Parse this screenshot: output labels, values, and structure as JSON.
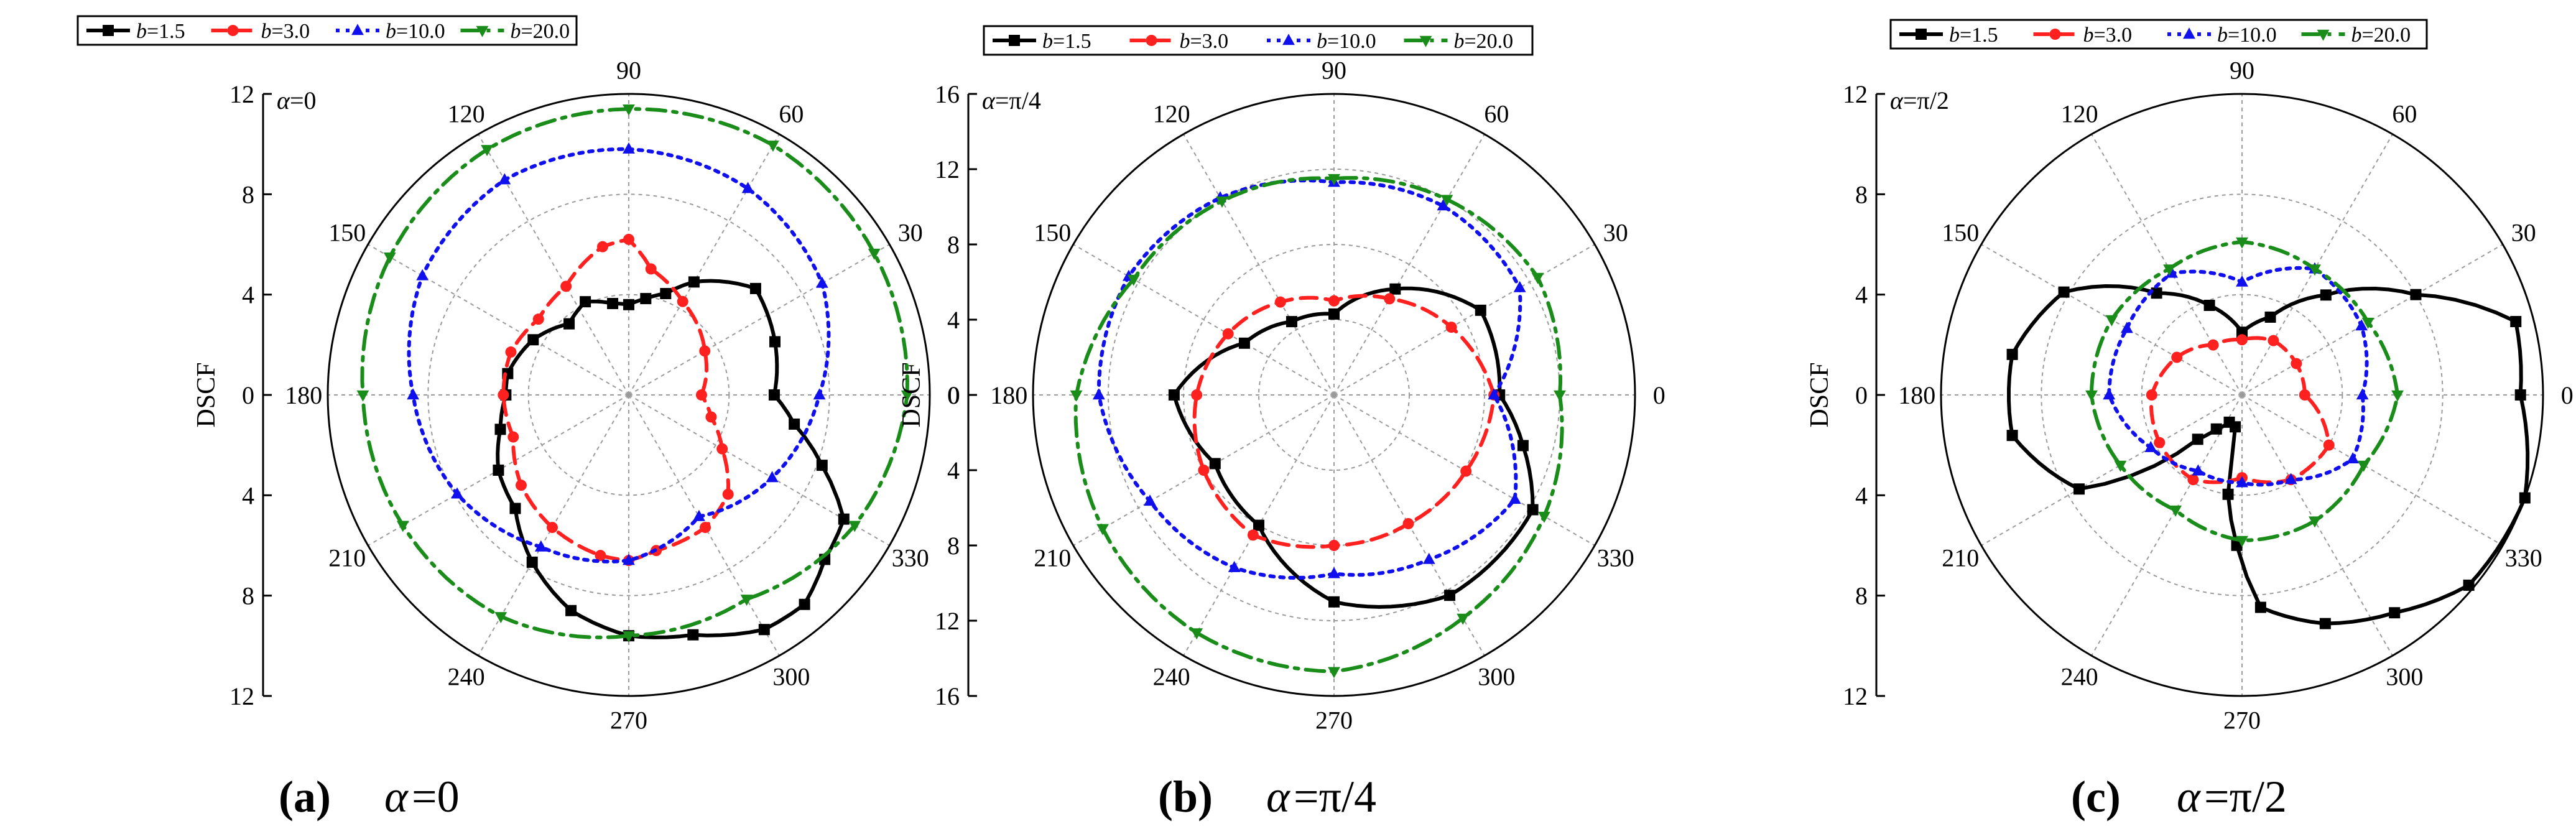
{
  "figure": {
    "panels": [
      {
        "letter": "(a)",
        "caption_symbol": "α",
        "caption_value": "=0"
      },
      {
        "letter": "(b)",
        "caption_symbol": "α",
        "caption_value": "=π/4"
      },
      {
        "letter": "(c)",
        "caption_symbol": "α",
        "caption_value": "=π/2"
      }
    ]
  },
  "legend": {
    "var": "b",
    "entries": [
      "=1.5",
      "=3.0",
      "=10.0",
      "=20.0"
    ]
  },
  "chart_data": [
    {
      "type": "polar-line",
      "panel": "a",
      "corner_label": "α=0",
      "ylabel": "DSCF",
      "rmax": 12,
      "r_ticks": [
        0,
        4,
        8,
        12
      ],
      "radial_tick_labels": [
        "12",
        "8",
        "4",
        "0",
        "4",
        "8",
        "12"
      ],
      "angle_labels": [
        "0",
        "30",
        "60",
        "90",
        "120",
        "150",
        "180",
        "210",
        "240",
        "270",
        "300",
        "330"
      ],
      "series": [
        {
          "name": "b=1.5",
          "color": "#000000",
          "dash": "solid",
          "marker": "square",
          "points": [
            [
              0,
              5.8
            ],
            [
              20,
              6.2
            ],
            [
              40,
              6.6
            ],
            [
              60,
              5.2
            ],
            [
              70,
              4.3
            ],
            [
              80,
              3.9
            ],
            [
              90,
              3.6
            ],
            [
              100,
              3.7
            ],
            [
              115,
              4.1
            ],
            [
              130,
              3.7
            ],
            [
              150,
              4.4
            ],
            [
              170,
              4.9
            ],
            [
              180,
              4.9
            ],
            [
              195,
              5.3
            ],
            [
              210,
              6.0
            ],
            [
              225,
              6.4
            ],
            [
              240,
              7.7
            ],
            [
              255,
              8.9
            ],
            [
              270,
              9.6
            ],
            [
              285,
              9.9
            ],
            [
              300,
              10.8
            ],
            [
              310,
              10.9
            ],
            [
              320,
              10.2
            ],
            [
              330,
              9.9
            ],
            [
              340,
              8.2
            ],
            [
              350,
              6.7
            ],
            [
              360,
              5.8
            ]
          ]
        },
        {
          "name": "b=3.0",
          "color": "#ff2020",
          "dash": "dash",
          "marker": "circle",
          "points": [
            [
              0,
              2.9
            ],
            [
              30,
              3.5
            ],
            [
              60,
              4.3
            ],
            [
              80,
              5.1
            ],
            [
              90,
              6.2
            ],
            [
              100,
              6.0
            ],
            [
              120,
              5.0
            ],
            [
              140,
              4.7
            ],
            [
              160,
              5.0
            ],
            [
              180,
              5.0
            ],
            [
              200,
              4.9
            ],
            [
              220,
              5.6
            ],
            [
              240,
              6.1
            ],
            [
              260,
              6.5
            ],
            [
              270,
              6.6
            ],
            [
              280,
              6.3
            ],
            [
              300,
              6.1
            ],
            [
              315,
              5.6
            ],
            [
              330,
              4.3
            ],
            [
              345,
              3.4
            ],
            [
              360,
              2.9
            ]
          ]
        },
        {
          "name": "b=10.0",
          "color": "#1010ee",
          "dash": "dot",
          "marker": "triangle-up",
          "points": [
            [
              0,
              7.6
            ],
            [
              30,
              8.9
            ],
            [
              60,
              9.5
            ],
            [
              90,
              9.8
            ],
            [
              120,
              9.9
            ],
            [
              150,
              9.5
            ],
            [
              180,
              8.6
            ],
            [
              210,
              7.9
            ],
            [
              240,
              7.0
            ],
            [
              270,
              6.6
            ],
            [
              300,
              5.6
            ],
            [
              330,
              6.6
            ],
            [
              360,
              7.6
            ]
          ]
        },
        {
          "name": "b=20.0",
          "color": "#1a8c1a",
          "dash": "dashdot",
          "marker": "triangle-down",
          "points": [
            [
              0,
              11.1
            ],
            [
              30,
              11.3
            ],
            [
              60,
              11.5
            ],
            [
              90,
              11.4
            ],
            [
              120,
              11.3
            ],
            [
              150,
              11.0
            ],
            [
              180,
              10.6
            ],
            [
              210,
              10.4
            ],
            [
              240,
              10.2
            ],
            [
              270,
              9.6
            ],
            [
              300,
              9.4
            ],
            [
              330,
              10.4
            ],
            [
              360,
              11.1
            ]
          ]
        }
      ]
    },
    {
      "type": "polar-line",
      "panel": "b",
      "corner_label": "α=π/4",
      "ylabel": "DSCF",
      "rmax": 16,
      "r_ticks": [
        0,
        4,
        8,
        12,
        16
      ],
      "radial_tick_labels": [
        "16",
        "12",
        "8",
        "4",
        "0",
        "4",
        "8",
        "12",
        "16"
      ],
      "angle_labels": [
        "0",
        "30",
        "60",
        "90",
        "120",
        "150",
        "180",
        "210",
        "240",
        "270",
        "300",
        "330"
      ],
      "series": [
        {
          "name": "b=1.5",
          "color": "#000000",
          "dash": "solid",
          "marker": "square",
          "points": [
            [
              0,
              8.8
            ],
            [
              30,
              9.0
            ],
            [
              60,
              6.5
            ],
            [
              90,
              4.3
            ],
            [
              120,
              4.5
            ],
            [
              150,
              5.5
            ],
            [
              180,
              8.5
            ],
            [
              210,
              7.3
            ],
            [
              240,
              8.0
            ],
            [
              270,
              11.0
            ],
            [
              300,
              12.3
            ],
            [
              330,
              12.2
            ],
            [
              345,
              10.4
            ],
            [
              360,
              8.8
            ]
          ]
        },
        {
          "name": "b=3.0",
          "color": "#ff2020",
          "dash": "dash",
          "marker": "circle",
          "points": [
            [
              0,
              8.5
            ],
            [
              30,
              7.2
            ],
            [
              60,
              5.9
            ],
            [
              90,
              5.0
            ],
            [
              120,
              5.7
            ],
            [
              150,
              6.5
            ],
            [
              180,
              7.3
            ],
            [
              210,
              8.0
            ],
            [
              240,
              8.6
            ],
            [
              270,
              8.0
            ],
            [
              300,
              7.9
            ],
            [
              330,
              8.1
            ],
            [
              360,
              8.5
            ]
          ]
        },
        {
          "name": "b=10.0",
          "color": "#1010ee",
          "dash": "dot",
          "marker": "triangle-up",
          "points": [
            [
              0,
              8.5
            ],
            [
              30,
              11.4
            ],
            [
              60,
              11.6
            ],
            [
              90,
              11.3
            ],
            [
              120,
              12.1
            ],
            [
              150,
              12.6
            ],
            [
              180,
              12.5
            ],
            [
              210,
              11.3
            ],
            [
              240,
              10.6
            ],
            [
              270,
              9.5
            ],
            [
              300,
              10.1
            ],
            [
              330,
              11.1
            ],
            [
              360,
              8.5
            ]
          ]
        },
        {
          "name": "b=20.0",
          "color": "#1a8c1a",
          "dash": "dashdot",
          "marker": "triangle-down",
          "points": [
            [
              0,
              12.0
            ],
            [
              30,
              12.5
            ],
            [
              60,
              12.0
            ],
            [
              90,
              11.5
            ],
            [
              120,
              11.9
            ],
            [
              150,
              12.3
            ],
            [
              180,
              13.7
            ],
            [
              210,
              14.2
            ],
            [
              240,
              14.6
            ],
            [
              270,
              14.7
            ],
            [
              300,
              13.7
            ],
            [
              330,
              12.9
            ],
            [
              360,
              12.0
            ]
          ]
        }
      ]
    },
    {
      "type": "polar-line",
      "panel": "c",
      "corner_label": "α=π/2",
      "ylabel": "DSCF",
      "rmax": 12,
      "r_ticks": [
        0,
        4,
        8,
        12
      ],
      "radial_tick_labels": [
        "12",
        "8",
        "4",
        "0",
        "4",
        "8",
        "12"
      ],
      "angle_labels": [
        "0",
        "30",
        "60",
        "90",
        "120",
        "150",
        "180",
        "210",
        "240",
        "270",
        "300",
        "330"
      ],
      "series": [
        {
          "name": "b=1.5",
          "color": "#000000",
          "dash": "solid",
          "marker": "square",
          "points": [
            [
              0,
              11.1
            ],
            [
              15,
              11.3
            ],
            [
              30,
              8.0
            ],
            [
              50,
              5.2
            ],
            [
              70,
              3.3
            ],
            [
              90,
              2.5
            ],
            [
              110,
              3.8
            ],
            [
              130,
              5.3
            ],
            [
              150,
              8.2
            ],
            [
              170,
              9.3
            ],
            [
              190,
              9.3
            ],
            [
              210,
              7.5
            ],
            [
              225,
              2.5
            ],
            [
              233,
              1.7
            ],
            [
              245,
              1.2
            ],
            [
              258,
              1.3
            ],
            [
              262,
              4.0
            ],
            [
              268,
              6.0
            ],
            [
              275,
              8.5
            ],
            [
              290,
              9.7
            ],
            [
              305,
              10.6
            ],
            [
              320,
              11.8
            ],
            [
              340,
              12.0
            ],
            [
              360,
              11.1
            ]
          ]
        },
        {
          "name": "b=3.0",
          "color": "#ff2020",
          "dash": "dash",
          "marker": "circle",
          "points": [
            [
              0,
              2.5
            ],
            [
              30,
              2.5
            ],
            [
              60,
              2.5
            ],
            [
              90,
              2.2
            ],
            [
              120,
              2.3
            ],
            [
              150,
              3.0
            ],
            [
              180,
              3.6
            ],
            [
              210,
              3.8
            ],
            [
              240,
              3.9
            ],
            [
              270,
              3.3
            ],
            [
              300,
              3.9
            ],
            [
              330,
              4.0
            ],
            [
              360,
              2.5
            ]
          ]
        },
        {
          "name": "b=10.0",
          "color": "#1010ee",
          "dash": "dot",
          "marker": "triangle-up",
          "points": [
            [
              0,
              4.8
            ],
            [
              30,
              5.5
            ],
            [
              60,
              5.8
            ],
            [
              90,
              4.5
            ],
            [
              120,
              5.6
            ],
            [
              150,
              5.3
            ],
            [
              180,
              5.3
            ],
            [
              210,
              4.2
            ],
            [
              240,
              3.5
            ],
            [
              270,
              3.5
            ],
            [
              300,
              3.9
            ],
            [
              330,
              5.1
            ],
            [
              360,
              4.8
            ]
          ]
        },
        {
          "name": "b=20.0",
          "color": "#1a8c1a",
          "dash": "dashdot",
          "marker": "triangle-down",
          "points": [
            [
              0,
              6.2
            ],
            [
              30,
              5.8
            ],
            [
              60,
              5.8
            ],
            [
              90,
              6.1
            ],
            [
              120,
              5.8
            ],
            [
              150,
              6.0
            ],
            [
              180,
              6.0
            ],
            [
              210,
              5.6
            ],
            [
              240,
              5.3
            ],
            [
              270,
              5.8
            ],
            [
              300,
              5.8
            ],
            [
              330,
              5.6
            ],
            [
              360,
              6.2
            ]
          ]
        }
      ]
    }
  ]
}
